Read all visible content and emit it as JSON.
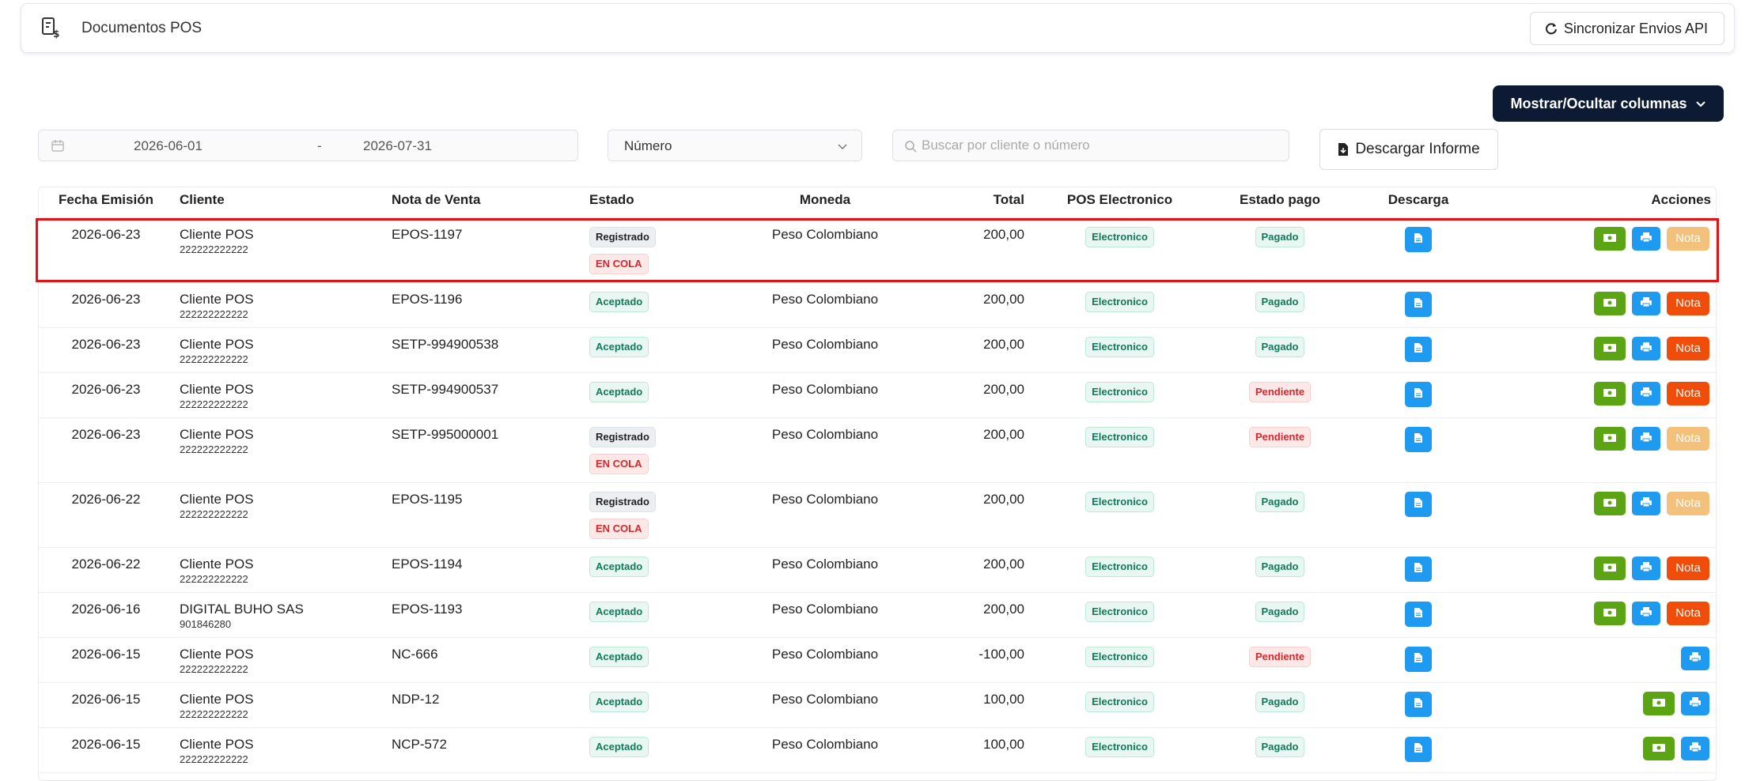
{
  "header": {
    "title": "Documentos POS",
    "sync_label": "Sincronizar Envios API"
  },
  "toolbar": {
    "columns_label": "Mostrar/Ocultar columnas",
    "date_from": "2026-06-01",
    "date_sep": "-",
    "date_to": "2026-07-31",
    "filter_value": "Número",
    "search_placeholder": "Buscar por cliente o número",
    "download_label": "Descargar Informe"
  },
  "table": {
    "columns": [
      "Fecha Emisión",
      "Cliente",
      "Nota de Venta",
      "Estado",
      "Moneda",
      "Total",
      "POS Electronico",
      "Estado pago",
      "Descarga",
      "Acciones"
    ],
    "rows": [
      {
        "date": "2026-06-23",
        "client": "Cliente POS",
        "nit": "222222222222",
        "note": "EPOS-1197",
        "status": "Registrado",
        "queue": "EN COLA",
        "currency": "Peso Colombiano",
        "total": "200,00",
        "pos": "Electronico",
        "pay": "Pagado",
        "cash": true,
        "nota": "Nota",
        "nota_enabled": false
      },
      {
        "date": "2026-06-23",
        "client": "Cliente POS",
        "nit": "222222222222",
        "note": "EPOS-1196",
        "status": "Aceptado",
        "queue": "",
        "currency": "Peso Colombiano",
        "total": "200,00",
        "pos": "Electronico",
        "pay": "Pagado",
        "cash": true,
        "nota": "Nota",
        "nota_enabled": true
      },
      {
        "date": "2026-06-23",
        "client": "Cliente POS",
        "nit": "222222222222",
        "note": "SETP-994900538",
        "status": "Aceptado",
        "queue": "",
        "currency": "Peso Colombiano",
        "total": "200,00",
        "pos": "Electronico",
        "pay": "Pagado",
        "cash": true,
        "nota": "Nota",
        "nota_enabled": true
      },
      {
        "date": "2026-06-23",
        "client": "Cliente POS",
        "nit": "222222222222",
        "note": "SETP-994900537",
        "status": "Aceptado",
        "queue": "",
        "currency": "Peso Colombiano",
        "total": "200,00",
        "pos": "Electronico",
        "pay": "Pendiente",
        "cash": true,
        "nota": "Nota",
        "nota_enabled": true
      },
      {
        "date": "2026-06-23",
        "client": "Cliente POS",
        "nit": "222222222222",
        "note": "SETP-995000001",
        "status": "Registrado",
        "queue": "EN COLA",
        "currency": "Peso Colombiano",
        "total": "200,00",
        "pos": "Electronico",
        "pay": "Pendiente",
        "cash": true,
        "nota": "Nota",
        "nota_enabled": false
      },
      {
        "date": "2026-06-22",
        "client": "Cliente POS",
        "nit": "222222222222",
        "note": "EPOS-1195",
        "status": "Registrado",
        "queue": "EN COLA",
        "currency": "Peso Colombiano",
        "total": "200,00",
        "pos": "Electronico",
        "pay": "Pagado",
        "cash": true,
        "nota": "Nota",
        "nota_enabled": false
      },
      {
        "date": "2026-06-22",
        "client": "Cliente POS",
        "nit": "222222222222",
        "note": "EPOS-1194",
        "status": "Aceptado",
        "queue": "",
        "currency": "Peso Colombiano",
        "total": "200,00",
        "pos": "Electronico",
        "pay": "Pagado",
        "cash": true,
        "nota": "Nota",
        "nota_enabled": true
      },
      {
        "date": "2026-06-16",
        "client": "DIGITAL BUHO SAS",
        "nit": "901846280",
        "note": "EPOS-1193",
        "status": "Aceptado",
        "queue": "",
        "currency": "Peso Colombiano",
        "total": "200,00",
        "pos": "Electronico",
        "pay": "Pagado",
        "cash": true,
        "nota": "Nota",
        "nota_enabled": true
      },
      {
        "date": "2026-06-15",
        "client": "Cliente POS",
        "nit": "222222222222",
        "note": "NC-666",
        "status": "Aceptado",
        "queue": "",
        "currency": "Peso Colombiano",
        "total": "-100,00",
        "pos": "Electronico",
        "pay": "Pendiente",
        "cash": false,
        "nota": "",
        "nota_enabled": false
      },
      {
        "date": "2026-06-15",
        "client": "Cliente POS",
        "nit": "222222222222",
        "note": "NDP-12",
        "status": "Aceptado",
        "queue": "",
        "currency": "Peso Colombiano",
        "total": "100,00",
        "pos": "Electronico",
        "pay": "Pagado",
        "cash": true,
        "nota": "",
        "nota_enabled": false
      },
      {
        "date": "2026-06-15",
        "client": "Cliente POS",
        "nit": "222222222222",
        "note": "NCP-572",
        "status": "Aceptado",
        "queue": "",
        "currency": "Peso Colombiano",
        "total": "100,00",
        "pos": "Electronico",
        "pay": "Pagado",
        "cash": true,
        "nota": "",
        "nota_enabled": false
      }
    ]
  },
  "colors": {
    "accent_dark": "#0c1a33",
    "primary": "#1e9bf0",
    "success": "#5ba514",
    "danger": "#f04c0a",
    "highlight": "#e01414"
  },
  "icons": {
    "app": "pos-receipt-icon",
    "sync": "refresh-icon",
    "calendar": "calendar-icon",
    "search": "search-icon",
    "download": "file-download-icon",
    "doc": "document-icon",
    "cash": "cash-icon",
    "print": "print-icon"
  }
}
